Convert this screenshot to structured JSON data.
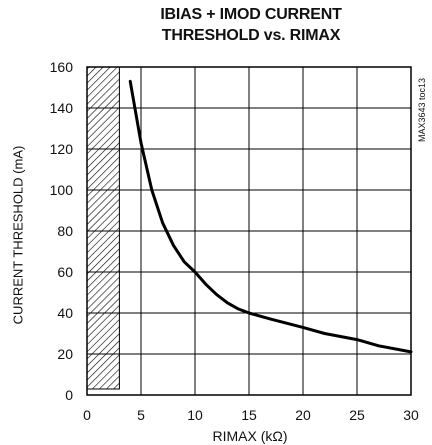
{
  "chart_data": {
    "type": "line",
    "title_line1": "IBIAS + IMOD CURRENT",
    "title_line2": "THRESHOLD vs. RIMAX",
    "ylabel": "CURRENT THRESHOLD (mA)",
    "xlabel": "RIMAX (kΩ)",
    "figure_code": "MAX3643 toc13",
    "xlim": [
      0,
      30
    ],
    "ylim": [
      0,
      160
    ],
    "x_ticks": [
      0,
      5,
      10,
      15,
      20,
      25,
      30
    ],
    "y_ticks": [
      0,
      20,
      40,
      60,
      80,
      100,
      120,
      140,
      160
    ],
    "grid": true,
    "hatched_region_x": [
      0,
      3
    ],
    "series": [
      {
        "x": [
          4,
          5,
          6,
          7,
          8,
          9,
          10,
          11,
          12,
          13,
          14,
          15,
          17,
          20,
          22,
          25,
          27,
          30
        ],
        "y": [
          153,
          123,
          100,
          84,
          73,
          65,
          60,
          54,
          49,
          45,
          42,
          40,
          37,
          33,
          30,
          27,
          24,
          21
        ]
      }
    ]
  }
}
